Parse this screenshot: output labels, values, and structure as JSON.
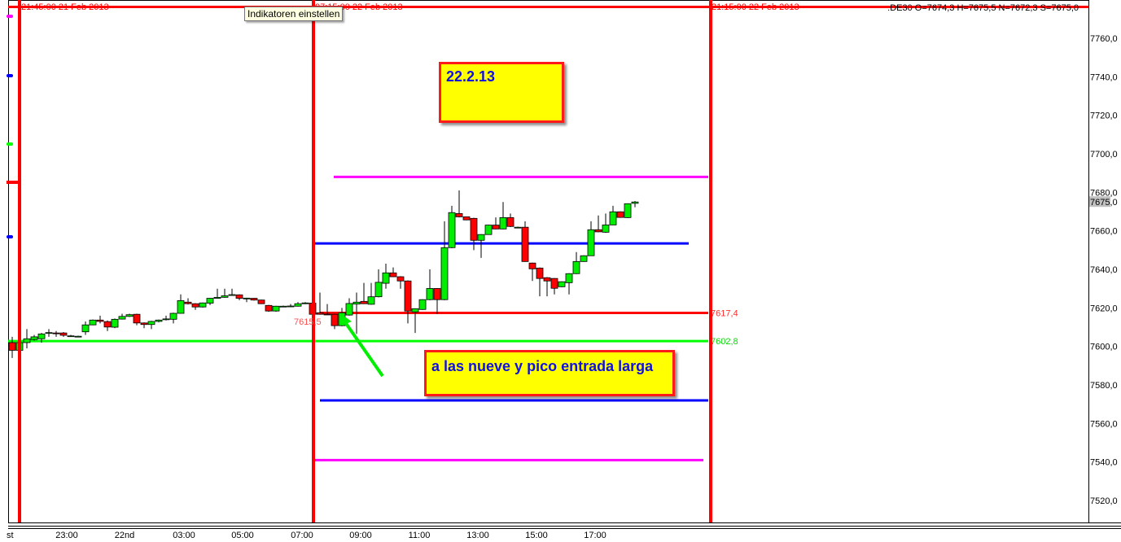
{
  "tooltip": "Indikatoren einstellen",
  "header": {
    "line_labels": [
      "21:45:00 21 Feb 2013",
      "07:15:00 22 Feb 2013",
      "21:15:00 22 Feb 2013"
    ],
    "quote": ".DE30 O=7674,3 H=7675,5 N=7672,3 S=7675,0"
  },
  "annotations": {
    "date_note": "22.2.13",
    "entry_note": "a las nueve y pico entrada larga"
  },
  "colors": {
    "bull": "#00ee00",
    "bear": "#ff0000",
    "vline": "#ff0000",
    "magenta": "#ff00ff",
    "blue": "#0000ff",
    "green": "#00ff00",
    "red": "#ff0000",
    "note_bg": "#ffff00",
    "note_text": "#1010e0"
  },
  "chart_data": {
    "type": "candlestick",
    "ylim": [
      7508,
      7776
    ],
    "y_ticks": [
      "7520,0",
      "7540,0",
      "7560,0",
      "7580,0",
      "7600,0",
      "7620,0",
      "7640,0",
      "7660,0",
      "7680,0",
      "7700,0",
      "7720,0",
      "7740,0",
      "7760,0"
    ],
    "last_price_label": "7675,0",
    "last_price": 7675.0,
    "x_ticks": [
      "st",
      "23:00",
      "22nd",
      "03:00",
      "05:00",
      "07:00",
      "09:00",
      "11:00",
      "13:00",
      "15:00",
      "17:00"
    ],
    "candles": [
      [
        7602,
        7605,
        7594,
        7598
      ],
      [
        7598,
        7603,
        7597,
        7602
      ],
      [
        7602,
        7609,
        7599,
        7604
      ],
      [
        7603.6,
        7606,
        7603,
        7605
      ],
      [
        7604,
        7607,
        7602,
        7606.5
      ],
      [
        7607,
        7609,
        7605,
        7607.2
      ],
      [
        7607,
        7608,
        7605,
        7606.8
      ],
      [
        7607,
        7607.5,
        7605,
        7605.8
      ],
      [
        7605.4,
        7606,
        7605,
        7605.5
      ],
      [
        7605.2,
        7605.6,
        7604.8,
        7605.3
      ],
      [
        7607.6,
        7613,
        7606,
        7611.2
      ],
      [
        7611.2,
        7614,
        7611,
        7613.7
      ],
      [
        7613.7,
        7616,
        7612,
        7613
      ],
      [
        7612.9,
        7613.5,
        7608,
        7610.1
      ],
      [
        7610,
        7614.5,
        7609.5,
        7614.1
      ],
      [
        7614.2,
        7617,
        7614,
        7615.6
      ],
      [
        7615.6,
        7617,
        7615.3,
        7616.5
      ],
      [
        7616.7,
        7617,
        7611,
        7612.2
      ],
      [
        7612.2,
        7612.5,
        7609.5,
        7611.4
      ],
      [
        7611.4,
        7613.3,
        7609,
        7613
      ],
      [
        7613,
        7614,
        7612.5,
        7613.7
      ],
      [
        7613.9,
        7616,
        7613.5,
        7614.3
      ],
      [
        7614.1,
        7617.5,
        7612,
        7617.2
      ],
      [
        7617.2,
        7627,
        7617,
        7623.8
      ],
      [
        7623,
        7625,
        7621.8,
        7622.2
      ],
      [
        7622.2,
        7622.5,
        7619,
        7620.5
      ],
      [
        7620.5,
        7622.8,
        7620.2,
        7622.6
      ],
      [
        7622.5,
        7625.2,
        7621.5,
        7625
      ],
      [
        7625,
        7630,
        7624.8,
        7625.5
      ],
      [
        7625.5,
        7630,
        7625.3,
        7626.3
      ],
      [
        7626.8,
        7630,
        7626.4,
        7626.9
      ],
      [
        7626.8,
        7627,
        7624,
        7625
      ],
      [
        7625,
        7625.3,
        7623,
        7625.1
      ],
      [
        7625,
        7625.2,
        7623.8,
        7624.1
      ],
      [
        7624.1,
        7624.3,
        7622,
        7622.2
      ],
      [
        7621.3,
        7621.6,
        7618,
        7618.4
      ],
      [
        7618.4,
        7621.1,
        7618,
        7620.9
      ],
      [
        7620.8,
        7621.2,
        7620.6,
        7620.9
      ],
      [
        7620.8,
        7622,
        7620.5,
        7621
      ],
      [
        7620.9,
        7623,
        7620.7,
        7622.2
      ],
      [
        7622.2,
        7623,
        7622,
        7622.6
      ],
      [
        7622.5,
        7623,
        7616.5,
        7616.7
      ],
      [
        7617.5,
        7628,
        7616.5,
        7616.7
      ],
      [
        7616.8,
        7622,
        7616.5,
        7616.7
      ],
      [
        7616.7,
        7617,
        7609,
        7610.8
      ],
      [
        7610.8,
        7620,
        7610.5,
        7617.5
      ],
      [
        7616.3,
        7625,
        7616,
        7622.3
      ],
      [
        7622,
        7628,
        7606.6,
        7623
      ],
      [
        7623.4,
        7633,
        7622,
        7622.2
      ],
      [
        7621.9,
        7633,
        7621.7,
        7625.8
      ],
      [
        7625.8,
        7640,
        7625.5,
        7633.3
      ],
      [
        7632.8,
        7643,
        7630,
        7638.2
      ],
      [
        7638.2,
        7641,
        7636,
        7636.2
      ],
      [
        7636.2,
        7636.5,
        7630,
        7634
      ],
      [
        7634,
        7634.3,
        7612,
        7618.4
      ],
      [
        7617.9,
        7619.8,
        7607,
        7619.6
      ],
      [
        7619.2,
        7624.5,
        7619,
        7624.3
      ],
      [
        7624.3,
        7640,
        7624,
        7630.1
      ],
      [
        7630.1,
        7630.3,
        7617,
        7624.3
      ],
      [
        7624.3,
        7665,
        7624,
        7651.3
      ],
      [
        7651.3,
        7673,
        7651,
        7669.5
      ],
      [
        7669,
        7681,
        7667,
        7667.3
      ],
      [
        7667.3,
        7667.5,
        7665.5,
        7665.7
      ],
      [
        7666.5,
        7666.8,
        7650,
        7655.1
      ],
      [
        7655.1,
        7658.3,
        7646,
        7658.1
      ],
      [
        7658.1,
        7663.2,
        7658,
        7663
      ],
      [
        7663,
        7667,
        7660.8,
        7661
      ],
      [
        7661,
        7675,
        7660.8,
        7666.9
      ],
      [
        7666.9,
        7669,
        7662,
        7662.3
      ],
      [
        7661.9,
        7662.2,
        7661.6,
        7661.9
      ],
      [
        7661.9,
        7665,
        7644,
        7644.1
      ],
      [
        7643.3,
        7643.5,
        7634,
        7640.3
      ],
      [
        7640.7,
        7641,
        7626,
        7635.3
      ],
      [
        7635.7,
        7636,
        7626,
        7634
      ],
      [
        7635.3,
        7635.5,
        7627,
        7630.2
      ],
      [
        7631,
        7633.8,
        7630.8,
        7633.6
      ],
      [
        7633.1,
        7638,
        7627,
        7637.8
      ],
      [
        7637.8,
        7649,
        7637.6,
        7644.1
      ],
      [
        7644.1,
        7647.3,
        7644,
        7647.1
      ],
      [
        7647.1,
        7665,
        7647,
        7660.6
      ],
      [
        7660.6,
        7668,
        7659.3,
        7659.5
      ],
      [
        7659.3,
        7669,
        7659,
        7663.1
      ],
      [
        7663.1,
        7673,
        7663,
        7669.9
      ],
      [
        7669.9,
        7670.1,
        7666.8,
        7667
      ],
      [
        7666.9,
        7674.3,
        7666.7,
        7674.1
      ],
      [
        7674.3,
        7675.5,
        7672.3,
        7675
      ]
    ],
    "levels": [
      {
        "price": 7688,
        "color": "magenta"
      },
      {
        "price": 7653.5,
        "color": "blue"
      },
      {
        "price": 7617.4,
        "color": "red",
        "label": "7617,4"
      },
      {
        "price": 7602.8,
        "color": "green",
        "label": "7602,8"
      },
      {
        "price": 7572,
        "color": "blue"
      },
      {
        "price": 7541,
        "color": "magenta"
      }
    ],
    "price_label_left": "7615,5"
  }
}
